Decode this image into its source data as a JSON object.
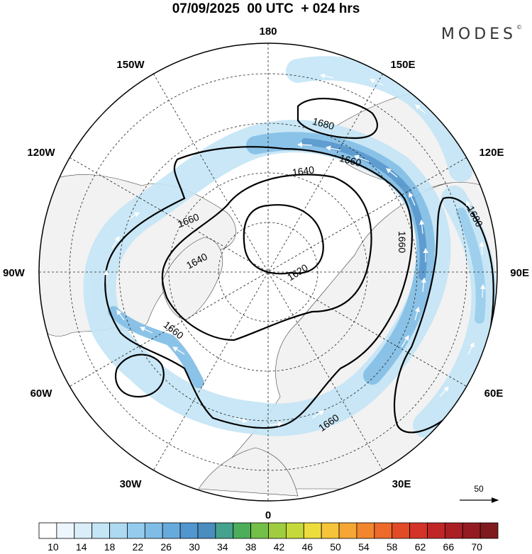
{
  "title": "07/09/2025  00 UTC  + 024 hrs",
  "logo": "MODES",
  "logo_mark": "©",
  "longitude_labels": {
    "top": "180",
    "bottom": "0",
    "left": "90W",
    "right": "90E",
    "upper_left_1": "150W",
    "upper_left_2": "120W",
    "upper_right_1": "150E",
    "upper_right_2": "120E",
    "lower_left_1": "60W",
    "lower_left_2": "30W",
    "lower_right_1": "60E",
    "lower_right_2": "30E"
  },
  "contour_labels": [
    "1680",
    "1660",
    "1640",
    "1620"
  ],
  "reference_vector": {
    "label": "50",
    "magnitude": 50
  },
  "colorbar": {
    "tick_labels": [
      "10",
      "14",
      "18",
      "22",
      "26",
      "30",
      "34",
      "38",
      "42",
      "46",
      "50",
      "54",
      "58",
      "62",
      "66",
      "70"
    ],
    "bin_colors": [
      "#ffffff",
      "#ecf6fc",
      "#d9eef9",
      "#c4e5f6",
      "#add9f1",
      "#95cced",
      "#7fbde6",
      "#67abdc",
      "#5196cf",
      "#4a8dbf",
      "#45a28e",
      "#4cae5b",
      "#73bf48",
      "#9fcd3f",
      "#c6d93b",
      "#ecdd3c",
      "#f6c43a",
      "#f6a635",
      "#f2862e",
      "#ed6a2a",
      "#e24b27",
      "#d33427",
      "#c02626",
      "#aa1f24",
      "#941b22",
      "#7f1a1f"
    ]
  },
  "colors": {
    "land": "#f2f2f2",
    "jet_light": "#c4e5f6",
    "jet_mid": "#7fbde6",
    "jet_core": "#4f93cc"
  }
}
